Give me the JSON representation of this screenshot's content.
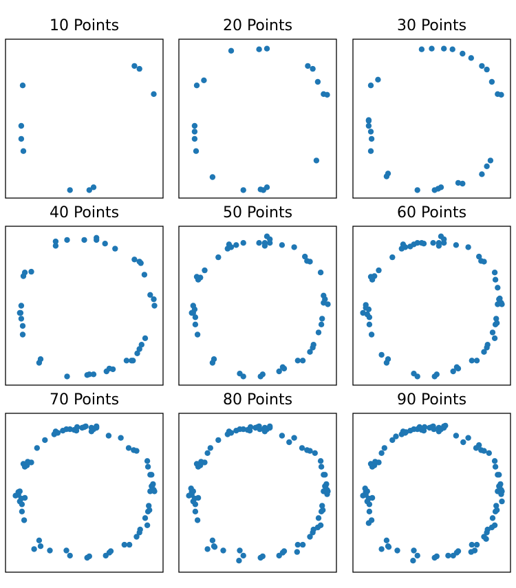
{
  "chart_data": [
    {
      "type": "scatter",
      "title": "10 Points",
      "color": "#1f77b4",
      "grid": false,
      "ticks": "hidden",
      "xlim": [
        -1.1,
        1.1
      ],
      "ylim": [
        -1.1,
        1.1
      ],
      "x": [
        0.7,
        0.77,
        0.97,
        -0.86,
        -0.88,
        -0.88,
        -0.85,
        -0.2,
        0.07,
        0.13
      ],
      "y": [
        0.73,
        0.69,
        0.34,
        0.46,
        -0.1,
        -0.28,
        -0.45,
        -0.99,
        -0.99,
        -0.95
      ]
    },
    {
      "type": "scatter",
      "title": "20 Points",
      "color": "#1f77b4",
      "grid": false,
      "ticks": "hidden",
      "xlim": [
        -1.1,
        1.1
      ],
      "ylim": [
        -1.1,
        1.1
      ],
      "x": [
        -0.37,
        0.02,
        0.13,
        0.7,
        0.77,
        0.84,
        0.92,
        0.97,
        -0.75,
        -0.85,
        -0.88,
        -0.88,
        -0.88,
        -0.86,
        -0.63,
        -0.2,
        0.04,
        0.08,
        0.13,
        0.82
      ],
      "y": [
        0.94,
        0.96,
        0.97,
        0.73,
        0.69,
        0.51,
        0.34,
        0.33,
        0.53,
        0.46,
        -0.1,
        -0.18,
        -0.28,
        -0.45,
        -0.81,
        -0.99,
        -0.98,
        -0.99,
        -0.95,
        -0.58
      ],
      "notes": []
    },
    {
      "type": "scatter",
      "title": "30 Points",
      "color": "#1f77b4",
      "grid": false,
      "ticks": "hidden",
      "xlim": [
        -1.1,
        1.1
      ],
      "ylim": [
        -1.1,
        1.1
      ],
      "x": [
        -0.14,
        0.0,
        0.17,
        0.29,
        0.43,
        0.55,
        0.7,
        0.77,
        0.84,
        0.92,
        0.97,
        -0.75,
        -0.85,
        -0.88,
        -0.88,
        -0.85,
        -0.84,
        -0.63,
        -0.61,
        -0.2,
        0.04,
        0.09,
        0.13,
        0.37,
        0.43,
        0.7,
        0.77,
        0.82,
        -0.85,
        -0.88
      ],
      "y": [
        0.96,
        0.97,
        0.97,
        0.96,
        0.9,
        0.84,
        0.73,
        0.68,
        0.51,
        0.34,
        0.33,
        0.54,
        0.46,
        -0.03,
        -0.1,
        -0.18,
        -0.28,
        -0.8,
        -0.76,
        -0.99,
        -0.99,
        -0.97,
        -0.95,
        -0.89,
        -0.9,
        -0.77,
        -0.66,
        -0.58,
        -0.45,
        -0.02
      ]
    },
    {
      "type": "scatter",
      "title": "40 Points",
      "color": "#1f77b4",
      "grid": false,
      "ticks": "hidden",
      "xlim": [
        -1.1,
        1.1
      ],
      "ylim": [
        -1.1,
        1.1
      ],
      "x": [
        -0.4,
        -0.4,
        -0.24,
        0.0,
        0.17,
        0.17,
        0.29,
        0.43,
        0.7,
        0.77,
        0.79,
        0.84,
        0.92,
        0.97,
        0.98,
        -0.74,
        -0.85,
        -0.88,
        -0.89,
        -0.9,
        -0.88,
        -0.86,
        -0.86,
        -0.63,
        -0.61,
        -0.24,
        0.04,
        0.07,
        0.13,
        0.31,
        0.35,
        0.4,
        0.59,
        0.68,
        0.74,
        0.77,
        0.8,
        0.85,
        -0.83,
        0.66
      ],
      "y": [
        0.89,
        0.83,
        0.91,
        0.91,
        0.91,
        0.94,
        0.86,
        0.79,
        0.64,
        0.61,
        0.59,
        0.43,
        0.15,
        0.09,
        0.0,
        0.47,
        0.41,
        0.0,
        -0.1,
        -0.1,
        -0.18,
        -0.28,
        -0.4,
        -0.79,
        -0.74,
        -0.98,
        -0.96,
        -0.95,
        -0.95,
        -0.91,
        -0.87,
        -0.88,
        -0.76,
        -0.76,
        -0.66,
        -0.6,
        -0.54,
        -0.45,
        0.46,
        -0.76
      ]
    },
    {
      "type": "scatter",
      "title": "50 Points",
      "color": "#1f77b4",
      "grid": false,
      "ticks": "hidden",
      "xlim": [
        -1.1,
        1.1
      ],
      "ylim": [
        -1.1,
        1.1
      ],
      "x": [
        -0.55,
        -0.42,
        -0.37,
        -0.3,
        -0.2,
        0.02,
        0.1,
        0.13,
        0.17,
        0.34,
        0.51,
        0.66,
        0.69,
        0.73,
        0.88,
        0.92,
        0.94,
        0.98,
        -0.74,
        -0.8,
        -0.83,
        -0.9,
        -0.92,
        -0.9,
        -0.87,
        -0.87,
        -0.84,
        -0.63,
        -0.61,
        -0.25,
        -0.2,
        0.04,
        0.07,
        0.3,
        0.35,
        0.37,
        0.56,
        0.63,
        0.73,
        0.77,
        0.78,
        0.85,
        0.89,
        0.9,
        -0.85,
        -0.88,
        0.92,
        0.17,
        -0.4,
        0.1
      ],
      "y": [
        0.67,
        0.79,
        0.81,
        0.84,
        0.87,
        0.87,
        0.87,
        0.96,
        0.87,
        0.84,
        0.81,
        0.68,
        0.62,
        0.61,
        0.46,
        0.14,
        0.09,
        0.02,
        0.49,
        0.39,
        0.36,
        0.0,
        -0.1,
        -0.1,
        -0.16,
        -0.26,
        -0.4,
        -0.79,
        -0.74,
        -0.94,
        -0.98,
        -0.98,
        -0.95,
        -0.91,
        -0.85,
        -0.87,
        -0.76,
        -0.76,
        -0.64,
        -0.58,
        -0.54,
        -0.37,
        -0.26,
        -0.18,
        0.4,
        -0.05,
        0.04,
        0.92,
        0.85,
        0.83
      ]
    },
    {
      "type": "scatter",
      "title": "60 Points",
      "color": "#1f77b4",
      "grid": false,
      "ticks": "hidden",
      "xlim": [
        -1.1,
        1.1
      ],
      "ylim": [
        -1.1,
        1.1
      ],
      "x": [
        -0.55,
        -0.42,
        -0.37,
        -0.3,
        -0.25,
        -0.2,
        -0.14,
        -0.11,
        0.02,
        0.1,
        0.13,
        0.17,
        0.34,
        0.51,
        0.66,
        0.69,
        0.73,
        0.88,
        0.89,
        0.92,
        0.94,
        0.98,
        -0.74,
        -0.8,
        -0.83,
        -0.92,
        -0.96,
        -0.9,
        -0.87,
        -0.87,
        -0.84,
        -0.63,
        -0.61,
        -0.25,
        -0.2,
        0.04,
        0.07,
        0.3,
        0.35,
        0.37,
        0.56,
        0.63,
        0.73,
        0.77,
        0.78,
        0.85,
        0.89,
        0.9,
        0.92,
        0.95,
        0.97,
        -0.7,
        -0.85,
        -0.88,
        -0.92,
        0.17,
        -0.4,
        0.1,
        0.88,
        0.91
      ],
      "y": [
        0.67,
        0.79,
        0.81,
        0.82,
        0.85,
        0.87,
        0.87,
        0.86,
        0.87,
        0.87,
        0.96,
        0.87,
        0.84,
        0.81,
        0.68,
        0.62,
        0.61,
        0.46,
        0.36,
        0.25,
        0.09,
        0.02,
        0.49,
        0.41,
        0.36,
        0.01,
        -0.1,
        -0.12,
        -0.16,
        -0.26,
        -0.4,
        -0.79,
        -0.74,
        -0.94,
        -0.98,
        -0.98,
        -0.95,
        -0.91,
        -0.85,
        -0.87,
        -0.76,
        -0.76,
        -0.64,
        -0.58,
        -0.54,
        -0.37,
        -0.26,
        -0.18,
        0.02,
        0.1,
        0.04,
        -0.68,
        0.4,
        -0.05,
        -0.03,
        0.92,
        0.85,
        0.83,
        -0.45,
        -0.24
      ]
    },
    {
      "type": "scatter",
      "title": "70 Points",
      "color": "#1f77b4",
      "grid": false,
      "ticks": "hidden",
      "xlim": [
        -1.1,
        1.1
      ],
      "ylim": [
        -1.1,
        1.1
      ],
      "x": [
        -0.66,
        -0.55,
        -0.42,
        -0.37,
        -0.3,
        -0.25,
        -0.2,
        -0.14,
        -0.11,
        -0.03,
        0.02,
        0.1,
        0.13,
        0.17,
        0.34,
        0.51,
        0.62,
        0.69,
        0.73,
        0.88,
        0.89,
        0.92,
        0.94,
        0.98,
        -0.74,
        -0.8,
        -0.83,
        -0.92,
        -0.96,
        -0.9,
        -0.87,
        -0.87,
        -0.84,
        -0.63,
        -0.61,
        -0.25,
        -0.2,
        0.04,
        0.07,
        0.3,
        0.35,
        0.37,
        0.56,
        0.63,
        0.73,
        0.77,
        0.78,
        0.85,
        0.89,
        0.9,
        0.92,
        0.95,
        0.97,
        -0.7,
        -0.85,
        -0.88,
        -0.92,
        0.17,
        -0.4,
        0.1,
        0.88,
        0.91,
        -0.79,
        -0.83,
        -0.1,
        0.0,
        -0.9,
        0.94,
        0.96,
        -0.48
      ],
      "y": [
        0.62,
        0.73,
        0.81,
        0.83,
        0.86,
        0.88,
        0.88,
        0.87,
        0.86,
        0.9,
        0.92,
        0.9,
        0.88,
        0.9,
        0.79,
        0.76,
        0.62,
        0.59,
        0.58,
        0.44,
        0.36,
        0.25,
        0.09,
        0.02,
        0.42,
        0.38,
        0.36,
        0.01,
        -0.04,
        -0.12,
        -0.16,
        -0.26,
        -0.38,
        -0.66,
        -0.74,
        -0.8,
        -0.87,
        -0.9,
        -0.88,
        -0.87,
        -0.83,
        -0.81,
        -0.72,
        -0.72,
        -0.61,
        -0.55,
        -0.51,
        -0.35,
        -0.26,
        -0.18,
        0.02,
        0.1,
        0.04,
        -0.78,
        0.4,
        -0.08,
        -0.03,
        0.92,
        0.85,
        0.85,
        -0.45,
        -0.24,
        0.43,
        -0.07,
        0.91,
        0.91,
        0.02,
        0.25,
        0.12,
        -0.8
      ]
    },
    {
      "type": "scatter",
      "title": "80 Points",
      "color": "#1f77b4",
      "grid": false,
      "ticks": "hidden",
      "xlim": [
        -1.1,
        1.1
      ],
      "ylim": [
        -1.1,
        1.1
      ],
      "x": [
        -0.66,
        -0.55,
        -0.42,
        -0.37,
        -0.3,
        -0.25,
        -0.2,
        -0.14,
        -0.11,
        -0.03,
        0.02,
        0.1,
        0.13,
        0.17,
        0.34,
        0.51,
        0.62,
        0.69,
        0.73,
        0.88,
        0.89,
        0.92,
        0.94,
        0.98,
        -0.74,
        -0.8,
        -0.83,
        -0.92,
        -0.96,
        -0.9,
        -0.87,
        -0.87,
        -0.84,
        -0.63,
        -0.61,
        -0.25,
        -0.2,
        0.04,
        0.07,
        0.3,
        0.35,
        0.37,
        0.56,
        0.63,
        0.73,
        0.77,
        0.78,
        0.85,
        0.89,
        0.9,
        0.92,
        0.95,
        0.97,
        -0.7,
        -0.85,
        -0.88,
        -0.92,
        0.17,
        -0.4,
        0.1,
        0.88,
        0.91,
        -0.79,
        -0.83,
        -0.1,
        0.0,
        -0.9,
        0.94,
        0.96,
        -0.48,
        0.44,
        0.55,
        -0.7,
        -0.6,
        0.8,
        0.84,
        -0.93,
        0.03,
        -0.26,
        0.97
      ],
      "y": [
        0.62,
        0.73,
        0.81,
        0.83,
        0.86,
        0.88,
        0.88,
        0.87,
        0.86,
        0.9,
        0.92,
        0.9,
        0.88,
        0.9,
        0.79,
        0.76,
        0.62,
        0.59,
        0.58,
        0.44,
        0.36,
        0.25,
        0.09,
        0.02,
        0.42,
        0.38,
        0.36,
        0.01,
        -0.04,
        -0.12,
        -0.16,
        -0.26,
        -0.38,
        -0.66,
        -0.74,
        -0.8,
        -0.87,
        -0.9,
        -0.88,
        -0.87,
        -0.83,
        -0.81,
        -0.72,
        -0.72,
        -0.61,
        -0.55,
        -0.51,
        -0.35,
        -0.26,
        -0.18,
        0.02,
        0.1,
        0.04,
        -0.78,
        0.4,
        -0.08,
        -0.03,
        0.92,
        0.85,
        0.85,
        -0.45,
        -0.24,
        0.43,
        -0.07,
        0.91,
        0.91,
        0.02,
        0.25,
        0.12,
        -0.8,
        0.7,
        -0.82,
        0.55,
        -0.75,
        0.55,
        -0.48,
        0.06,
        0.88,
        -0.94,
        -0.02
      ]
    },
    {
      "type": "scatter",
      "title": "90 Points",
      "color": "#1f77b4",
      "grid": false,
      "ticks": "hidden",
      "xlim": [
        -1.1,
        1.1
      ],
      "ylim": [
        -1.1,
        1.1
      ],
      "x": [
        -0.66,
        -0.55,
        -0.42,
        -0.37,
        -0.3,
        -0.25,
        -0.2,
        -0.14,
        -0.11,
        -0.03,
        0.02,
        0.1,
        0.13,
        0.17,
        0.34,
        0.51,
        0.62,
        0.69,
        0.73,
        0.88,
        0.89,
        0.92,
        0.94,
        0.98,
        -0.74,
        -0.8,
        -0.83,
        -0.92,
        -0.96,
        -0.9,
        -0.87,
        -0.87,
        -0.84,
        -0.63,
        -0.61,
        -0.25,
        -0.2,
        0.04,
        0.07,
        0.3,
        0.35,
        0.37,
        0.56,
        0.63,
        0.73,
        0.77,
        0.78,
        0.85,
        0.89,
        0.9,
        0.92,
        0.95,
        0.97,
        -0.7,
        -0.85,
        -0.88,
        -0.92,
        0.17,
        -0.4,
        0.1,
        0.88,
        0.91,
        -0.79,
        -0.83,
        -0.1,
        0.0,
        -0.9,
        0.94,
        0.96,
        -0.48,
        0.44,
        0.55,
        -0.7,
        -0.6,
        0.8,
        0.84,
        -0.93,
        0.03,
        -0.26,
        0.97,
        -0.36,
        -0.17,
        0.23,
        0.6,
        0.76,
        -0.5,
        0.66,
        -0.88,
        0.98,
        0.19
      ],
      "y": [
        0.62,
        0.73,
        0.81,
        0.83,
        0.86,
        0.88,
        0.88,
        0.87,
        0.86,
        0.9,
        0.92,
        0.9,
        0.88,
        0.9,
        0.79,
        0.76,
        0.62,
        0.59,
        0.58,
        0.44,
        0.36,
        0.25,
        0.09,
        0.02,
        0.42,
        0.38,
        0.36,
        0.01,
        -0.04,
        -0.12,
        -0.16,
        -0.26,
        -0.38,
        -0.66,
        -0.74,
        -0.8,
        -0.87,
        -0.9,
        -0.88,
        -0.87,
        -0.83,
        -0.81,
        -0.72,
        -0.72,
        -0.61,
        -0.55,
        -0.51,
        -0.35,
        -0.26,
        -0.18,
        0.02,
        0.1,
        0.04,
        -0.78,
        0.4,
        -0.08,
        -0.03,
        0.92,
        0.85,
        0.85,
        -0.45,
        -0.24,
        0.43,
        -0.07,
        0.91,
        0.91,
        0.02,
        0.25,
        0.12,
        -0.8,
        0.7,
        -0.82,
        0.55,
        -0.75,
        0.55,
        -0.48,
        0.06,
        0.88,
        -0.94,
        -0.02,
        0.84,
        0.91,
        -0.87,
        -0.8,
        -0.64,
        0.78,
        0.66,
        -0.42,
        -0.12,
        0.93
      ]
    }
  ]
}
